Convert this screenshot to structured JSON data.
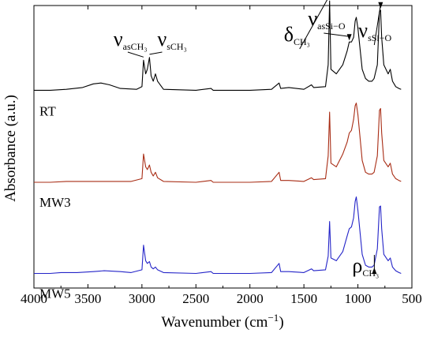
{
  "chart_data": {
    "type": "line",
    "xlabel": "Wavenumber (cm",
    "xlabel_sup": "−1",
    "xlabel_close": ")",
    "ylabel": "Absorbance (a.u.)",
    "xlim": [
      4000,
      500
    ],
    "x_ticks": [
      4000,
      3500,
      3000,
      2500,
      2000,
      1500,
      1000,
      500
    ],
    "y_ticks": [],
    "grid": false,
    "legend": "none",
    "series": [
      {
        "name": "RT",
        "color": "#000000",
        "offset": 2.0,
        "points": [
          [
            4000,
            0.02
          ],
          [
            3850,
            0.02
          ],
          [
            3700,
            0.03
          ],
          [
            3550,
            0.05
          ],
          [
            3450,
            0.09
          ],
          [
            3380,
            0.1
          ],
          [
            3300,
            0.08
          ],
          [
            3200,
            0.04
          ],
          [
            3050,
            0.03
          ],
          [
            3000,
            0.06
          ],
          [
            2985,
            0.35
          ],
          [
            2965,
            0.2
          ],
          [
            2950,
            0.25
          ],
          [
            2930,
            0.38
          ],
          [
            2915,
            0.18
          ],
          [
            2895,
            0.12
          ],
          [
            2875,
            0.2
          ],
          [
            2855,
            0.12
          ],
          [
            2800,
            0.03
          ],
          [
            2500,
            0.02
          ],
          [
            2360,
            0.04
          ],
          [
            2340,
            0.02
          ],
          [
            2000,
            0.02
          ],
          [
            1800,
            0.03
          ],
          [
            1730,
            0.1
          ],
          [
            1715,
            0.04
          ],
          [
            1640,
            0.05
          ],
          [
            1500,
            0.03
          ],
          [
            1430,
            0.08
          ],
          [
            1410,
            0.05
          ],
          [
            1300,
            0.06
          ],
          [
            1275,
            0.3
          ],
          [
            1262,
            1.0
          ],
          [
            1250,
            0.25
          ],
          [
            1200,
            0.2
          ],
          [
            1140,
            0.3
          ],
          [
            1100,
            0.45
          ],
          [
            1080,
            0.55
          ],
          [
            1060,
            0.55
          ],
          [
            1040,
            0.6
          ],
          [
            1025,
            0.78
          ],
          [
            1015,
            0.82
          ],
          [
            1000,
            0.7
          ],
          [
            960,
            0.25
          ],
          [
            930,
            0.15
          ],
          [
            900,
            0.12
          ],
          [
            870,
            0.12
          ],
          [
            850,
            0.15
          ],
          [
            820,
            0.3
          ],
          [
            800,
            0.88
          ],
          [
            790,
            0.9
          ],
          [
            780,
            0.6
          ],
          [
            760,
            0.3
          ],
          [
            720,
            0.2
          ],
          [
            700,
            0.25
          ],
          [
            680,
            0.12
          ],
          [
            650,
            0.06
          ],
          [
            620,
            0.04
          ],
          [
            600,
            0.03
          ]
        ]
      },
      {
        "name": "MW3",
        "color": "#a82c14",
        "offset": 1.0,
        "points": [
          [
            4000,
            0.01
          ],
          [
            3850,
            0.01
          ],
          [
            3700,
            0.02
          ],
          [
            3500,
            0.02
          ],
          [
            3300,
            0.02
          ],
          [
            3100,
            0.02
          ],
          [
            3000,
            0.05
          ],
          [
            2985,
            0.32
          ],
          [
            2965,
            0.18
          ],
          [
            2950,
            0.15
          ],
          [
            2930,
            0.2
          ],
          [
            2915,
            0.12
          ],
          [
            2895,
            0.08
          ],
          [
            2875,
            0.12
          ],
          [
            2855,
            0.06
          ],
          [
            2800,
            0.02
          ],
          [
            2500,
            0.01
          ],
          [
            2360,
            0.03
          ],
          [
            2340,
            0.01
          ],
          [
            2000,
            0.01
          ],
          [
            1800,
            0.02
          ],
          [
            1730,
            0.12
          ],
          [
            1715,
            0.03
          ],
          [
            1640,
            0.03
          ],
          [
            1500,
            0.02
          ],
          [
            1430,
            0.06
          ],
          [
            1410,
            0.04
          ],
          [
            1300,
            0.05
          ],
          [
            1275,
            0.3
          ],
          [
            1262,
            0.78
          ],
          [
            1250,
            0.22
          ],
          [
            1200,
            0.18
          ],
          [
            1140,
            0.32
          ],
          [
            1100,
            0.45
          ],
          [
            1080,
            0.55
          ],
          [
            1060,
            0.58
          ],
          [
            1040,
            0.7
          ],
          [
            1025,
            0.85
          ],
          [
            1015,
            0.88
          ],
          [
            1000,
            0.75
          ],
          [
            960,
            0.25
          ],
          [
            930,
            0.12
          ],
          [
            900,
            0.1
          ],
          [
            870,
            0.1
          ],
          [
            850,
            0.12
          ],
          [
            820,
            0.3
          ],
          [
            800,
            0.8
          ],
          [
            790,
            0.82
          ],
          [
            780,
            0.55
          ],
          [
            760,
            0.25
          ],
          [
            720,
            0.18
          ],
          [
            700,
            0.22
          ],
          [
            680,
            0.1
          ],
          [
            650,
            0.05
          ],
          [
            620,
            0.03
          ],
          [
            600,
            0.02
          ]
        ]
      },
      {
        "name": "MW5",
        "color": "#2424c8",
        "offset": 0.0,
        "points": [
          [
            4000,
            0.01
          ],
          [
            3850,
            0.01
          ],
          [
            3750,
            0.02
          ],
          [
            3600,
            0.02
          ],
          [
            3450,
            0.03
          ],
          [
            3350,
            0.04
          ],
          [
            3200,
            0.03
          ],
          [
            3100,
            0.02
          ],
          [
            3000,
            0.05
          ],
          [
            2985,
            0.32
          ],
          [
            2965,
            0.15
          ],
          [
            2950,
            0.12
          ],
          [
            2930,
            0.14
          ],
          [
            2915,
            0.08
          ],
          [
            2895,
            0.06
          ],
          [
            2875,
            0.08
          ],
          [
            2855,
            0.05
          ],
          [
            2800,
            0.02
          ],
          [
            2500,
            0.01
          ],
          [
            2360,
            0.03
          ],
          [
            2340,
            0.01
          ],
          [
            2000,
            0.01
          ],
          [
            1800,
            0.02
          ],
          [
            1730,
            0.12
          ],
          [
            1715,
            0.03
          ],
          [
            1640,
            0.03
          ],
          [
            1500,
            0.02
          ],
          [
            1430,
            0.06
          ],
          [
            1410,
            0.04
          ],
          [
            1300,
            0.05
          ],
          [
            1275,
            0.2
          ],
          [
            1262,
            0.58
          ],
          [
            1250,
            0.18
          ],
          [
            1200,
            0.15
          ],
          [
            1140,
            0.25
          ],
          [
            1100,
            0.42
          ],
          [
            1080,
            0.5
          ],
          [
            1060,
            0.52
          ],
          [
            1040,
            0.62
          ],
          [
            1025,
            0.8
          ],
          [
            1015,
            0.85
          ],
          [
            1000,
            0.7
          ],
          [
            960,
            0.22
          ],
          [
            930,
            0.1
          ],
          [
            900,
            0.08
          ],
          [
            870,
            0.08
          ],
          [
            850,
            0.1
          ],
          [
            820,
            0.28
          ],
          [
            800,
            0.74
          ],
          [
            790,
            0.75
          ],
          [
            780,
            0.5
          ],
          [
            760,
            0.22
          ],
          [
            720,
            0.15
          ],
          [
            700,
            0.18
          ],
          [
            680,
            0.08
          ],
          [
            650,
            0.04
          ],
          [
            620,
            0.02
          ],
          [
            600,
            0.01
          ]
        ]
      }
    ],
    "annotations": [
      {
        "main": "ν",
        "sub": "asCH₃",
        "x_data": 2985,
        "arrow_to_x": 2985
      },
      {
        "main": "ν",
        "sub": "sCH₃",
        "x_data": 2915,
        "arrow_to_x": 2930
      },
      {
        "main": "δ",
        "sub": "CH₃",
        "x_data": 1262,
        "arrow_to_x": 1262
      },
      {
        "main": "ν",
        "sub": "asSi−O",
        "x_data": 1060,
        "arrow_to_x": 1080
      },
      {
        "main": "ν",
        "sub": "sSi−O",
        "x_data": 790,
        "arrow_to_x": 790
      },
      {
        "main": "ρ",
        "sub": "CH₃",
        "x_data": 848,
        "arrow_to_x": 848
      }
    ]
  }
}
